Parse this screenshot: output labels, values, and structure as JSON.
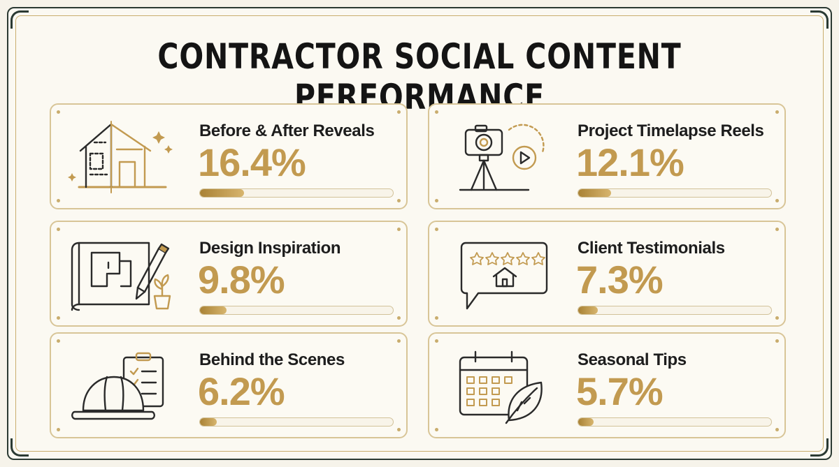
{
  "title": "CONTRACTOR SOCIAL CONTENT PERFORMANCE",
  "colors": {
    "accent_gold": "#c29a50",
    "dark_frame": "#2b3a33",
    "card_border": "#d8c597",
    "background": "#fbf9f2"
  },
  "chart_data": {
    "type": "bar",
    "title": "CONTRACTOR SOCIAL CONTENT PERFORMANCE",
    "categories": [
      "Before & After Reveals",
      "Project Timelapse Reels",
      "Design Inspiration",
      "Client Testimonials",
      "Behind the Scenes",
      "Seasonal Tips"
    ],
    "values": [
      16.4,
      12.1,
      9.8,
      7.3,
      6.2,
      5.7
    ],
    "unit": "%",
    "grid": false
  },
  "cards": [
    {
      "label": "Before & After Reveals",
      "value_text": "16.4%",
      "value": 16.4,
      "icon": "house-renovation-icon"
    },
    {
      "label": "Project Timelapse Reels",
      "value_text": "12.1%",
      "value": 12.1,
      "icon": "camera-tripod-icon"
    },
    {
      "label": "Design Inspiration",
      "value_text": "9.8%",
      "value": 9.8,
      "icon": "blueprint-pencil-icon"
    },
    {
      "label": "Client Testimonials",
      "value_text": "7.3%",
      "value": 7.3,
      "icon": "review-bubble-icon"
    },
    {
      "label": "Behind the Scenes",
      "value_text": "6.2%",
      "value": 6.2,
      "icon": "hardhat-clipboard-icon"
    },
    {
      "label": "Seasonal Tips",
      "value_text": "5.7%",
      "value": 5.7,
      "icon": "calendar-leaf-icon"
    }
  ]
}
